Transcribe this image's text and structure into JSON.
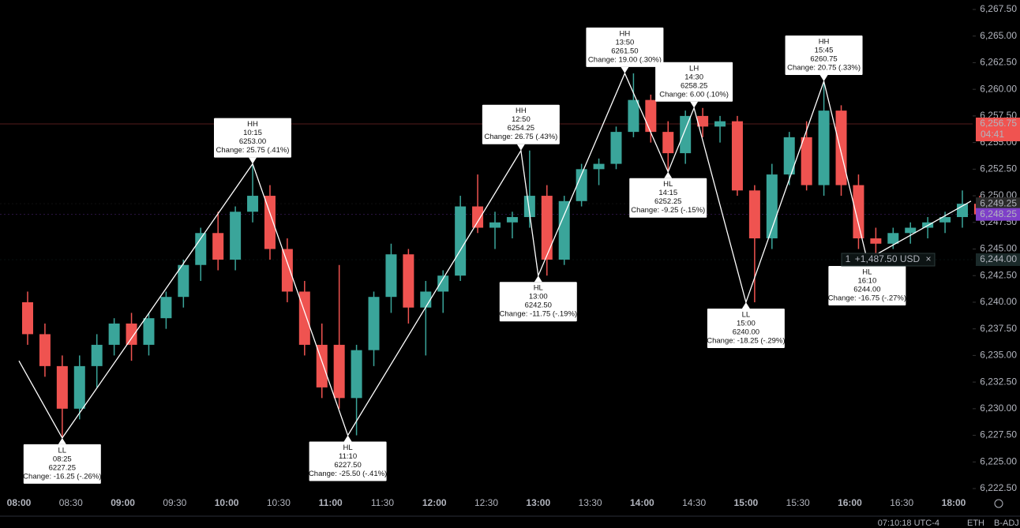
{
  "chart_data": {
    "type": "candlestick",
    "up_color": "#3aa59a",
    "down_color": "#ef5350",
    "line_color": "#ffffff",
    "ylim": [
      6222.5,
      6267.5
    ],
    "yticks": [
      {
        "value": 6222.5,
        "label": "6,222.50"
      },
      {
        "value": 6225,
        "label": "6,225.00"
      },
      {
        "value": 6227.5,
        "label": "6,227.50"
      },
      {
        "value": 6230,
        "label": "6,230.00"
      },
      {
        "value": 6232.5,
        "label": "6,232.50"
      },
      {
        "value": 6235,
        "label": "6,235.00"
      },
      {
        "value": 6237.5,
        "label": "6,237.50"
      },
      {
        "value": 6240,
        "label": "6,240.00"
      },
      {
        "value": 6242.5,
        "label": "6,242.50"
      },
      {
        "value": 6245,
        "label": "6,245.00"
      },
      {
        "value": 6247.5,
        "label": "6,247.50"
      },
      {
        "value": 6250,
        "label": "6,250.00"
      },
      {
        "value": 6252.5,
        "label": "6,252.50"
      },
      {
        "value": 6255,
        "label": "6,255.00"
      },
      {
        "value": 6257.5,
        "label": "6,257.50"
      },
      {
        "value": 6260,
        "label": "6,260.00"
      },
      {
        "value": 6262.5,
        "label": "6,262.50"
      },
      {
        "value": 6265,
        "label": "6,265.00"
      },
      {
        "value": 6267.5,
        "label": "6,267.50"
      }
    ],
    "xticks": [
      "08:00",
      "08:30",
      "09:00",
      "09:30",
      "10:00",
      "10:30",
      "11:00",
      "11:30",
      "12:00",
      "12:30",
      "13:00",
      "13:30",
      "14:00",
      "14:30",
      "15:00",
      "15:30",
      "16:00",
      "16:30",
      "18:00"
    ],
    "x": [
      "08:00",
      "08:10",
      "08:20",
      "08:30",
      "08:40",
      "08:50",
      "09:00",
      "09:10",
      "09:20",
      "09:30",
      "09:40",
      "09:50",
      "10:00",
      "10:10",
      "10:20",
      "10:30",
      "10:40",
      "10:50",
      "11:00",
      "11:10",
      "11:20",
      "11:30",
      "11:40",
      "11:50",
      "12:00",
      "12:10",
      "12:20",
      "12:30",
      "12:40",
      "12:50",
      "13:00",
      "13:10",
      "13:20",
      "13:30",
      "13:40",
      "13:50",
      "14:00",
      "14:10",
      "14:20",
      "14:30",
      "14:40",
      "14:50",
      "15:00",
      "15:10",
      "15:20",
      "15:30",
      "15:40",
      "15:50",
      "16:00",
      "16:10",
      "16:20",
      "16:30",
      "16:40",
      "16:50",
      "18:00",
      "18:10"
    ],
    "ohlc": [
      [
        6240,
        6241,
        6236,
        6237
      ],
      [
        6237,
        6238,
        6233,
        6234
      ],
      [
        6234,
        6235,
        6227.25,
        6230
      ],
      [
        6230,
        6235,
        6229,
        6234
      ],
      [
        6234,
        6237,
        6232,
        6236
      ],
      [
        6236,
        6238.5,
        6235,
        6238
      ],
      [
        6238,
        6239,
        6234.5,
        6236
      ],
      [
        6236,
        6239,
        6235,
        6238.5
      ],
      [
        6238.5,
        6241,
        6237.5,
        6240.5
      ],
      [
        6240.5,
        6244,
        6239.5,
        6243.5
      ],
      [
        6243.5,
        6247,
        6242,
        6246.5
      ],
      [
        6246.5,
        6248.5,
        6243,
        6244
      ],
      [
        6244,
        6249,
        6243,
        6248.5
      ],
      [
        6248.5,
        6253,
        6247.5,
        6250
      ],
      [
        6250,
        6251,
        6244,
        6245
      ],
      [
        6245,
        6246,
        6240,
        6241
      ],
      [
        6241,
        6242,
        6235,
        6236
      ],
      [
        6236,
        6238,
        6231,
        6232
      ],
      [
        6236,
        6243.5,
        6230,
        6231
      ],
      [
        6231,
        6236,
        6227.5,
        6235.5
      ],
      [
        6235.5,
        6241,
        6234,
        6240.5
      ],
      [
        6240.5,
        6245.5,
        6239,
        6244.5
      ],
      [
        6244.5,
        6245,
        6238,
        6239.5
      ],
      [
        6239.5,
        6242,
        6235,
        6241
      ],
      [
        6241,
        6243,
        6239,
        6242.5
      ],
      [
        6242.5,
        6250,
        6242,
        6249
      ],
      [
        6249,
        6252,
        6246.5,
        6247
      ],
      [
        6247,
        6248.5,
        6245,
        6247.5
      ],
      [
        6247.5,
        6248.5,
        6246,
        6248
      ],
      [
        6248,
        6254.25,
        6247,
        6250
      ],
      [
        6250,
        6251,
        6242.5,
        6244
      ],
      [
        6244,
        6250,
        6243.5,
        6249.5
      ],
      [
        6249.5,
        6253,
        6249,
        6252.5
      ],
      [
        6252.5,
        6253.5,
        6251,
        6253
      ],
      [
        6253,
        6256.5,
        6252.5,
        6256
      ],
      [
        6256,
        6261.5,
        6255.5,
        6259
      ],
      [
        6259,
        6259.5,
        6255,
        6256
      ],
      [
        6256,
        6257,
        6252.25,
        6254
      ],
      [
        6254,
        6258,
        6253,
        6257.5
      ],
      [
        6257.5,
        6258.25,
        6255.5,
        6256.5
      ],
      [
        6256.5,
        6257.5,
        6255,
        6257
      ],
      [
        6257,
        6257.5,
        6250,
        6250.5
      ],
      [
        6250.5,
        6251,
        6240,
        6246
      ],
      [
        6246,
        6253,
        6245,
        6252
      ],
      [
        6252,
        6256,
        6251,
        6255.5
      ],
      [
        6255.5,
        6257,
        6250.5,
        6251
      ],
      [
        6251,
        6260.75,
        6250,
        6258
      ],
      [
        6258,
        6258.5,
        6250,
        6251
      ],
      [
        6251,
        6252,
        6245,
        6246
      ],
      [
        6246,
        6247,
        6244,
        6245.5
      ],
      [
        6245.5,
        6247,
        6245,
        6246.5
      ],
      [
        6246.5,
        6247.5,
        6245.5,
        6247
      ],
      [
        6247,
        6248,
        6246,
        6247.5
      ],
      [
        6247.5,
        6248.5,
        6246.5,
        6248
      ],
      [
        6248,
        6250.5,
        6247,
        6249.25
      ],
      [
        6249.25,
        6250,
        6248,
        6248.25
      ]
    ],
    "line_start": {
      "x": "08:00",
      "value": 6234.5
    },
    "line_end": {
      "x": "18:10",
      "value": 6249.5
    },
    "pivots": [
      {
        "kind": "LL",
        "time": "08:25",
        "price": {
          "value": 6227.25,
          "label": "6227.25"
        },
        "change": "Change: -16.25 (-.26%)"
      },
      {
        "kind": "HH",
        "time": "10:15",
        "price": {
          "value": 6253,
          "label": "6253.00"
        },
        "change": "Change: 25.75 (.41%)"
      },
      {
        "kind": "HL",
        "time": "11:10",
        "price": {
          "value": 6227.5,
          "label": "6227.50"
        },
        "change": "Change: -25.50 (-.41%)"
      },
      {
        "kind": "HH",
        "time": "12:50",
        "price": {
          "value": 6254.25,
          "label": "6254.25"
        },
        "change": "Change: 26.75 (.43%)"
      },
      {
        "kind": "HL",
        "time": "13:00",
        "price": {
          "value": 6242.5,
          "label": "6242.50"
        },
        "change": "Change: -11.75 (-.19%)"
      },
      {
        "kind": "HH",
        "time": "13:50",
        "price": {
          "value": 6261.5,
          "label": "6261.50"
        },
        "change": "Change: 19.00 (.30%)"
      },
      {
        "kind": "HL",
        "time": "14:15",
        "price": {
          "value": 6252.25,
          "label": "6252.25"
        },
        "change": "Change: -9.25 (-.15%)"
      },
      {
        "kind": "LH",
        "time": "14:30",
        "price": {
          "value": 6258.25,
          "label": "6258.25"
        },
        "change": "Change: 6.00 (.10%)"
      },
      {
        "kind": "LL",
        "time": "15:00",
        "price": {
          "value": 6240,
          "label": "6240.00"
        },
        "change": "Change: -18.25 (-.29%)"
      },
      {
        "kind": "HH",
        "time": "15:45",
        "price": {
          "value": 6260.75,
          "label": "6260.75"
        },
        "change": "Change: 20.75 (.33%)"
      },
      {
        "kind": "HL",
        "time": "16:10",
        "price": {
          "value": 6244,
          "label": "6244.00"
        },
        "change": "Change: -16.75 (-.27%)"
      }
    ],
    "price_badges": [
      {
        "value": 6256.75,
        "label": "6,256.75",
        "color": "#f05350"
      },
      {
        "value": 6249.25,
        "label": "6,249.25",
        "color": "#2a2a2a"
      },
      {
        "value": 6248.25,
        "label": "6,248.25",
        "color": "#7e3fc9"
      },
      {
        "value": 6244,
        "label": "6,244.00",
        "color": "#1b2a2a"
      }
    ],
    "countdown": "04:41",
    "position": {
      "qty": "1",
      "pnl": "+1,487.50 USD",
      "close": "×"
    },
    "status": {
      "clock": "07:10:18 UTC-4",
      "session": "ETH",
      "adjust": "B-ADJ"
    }
  }
}
